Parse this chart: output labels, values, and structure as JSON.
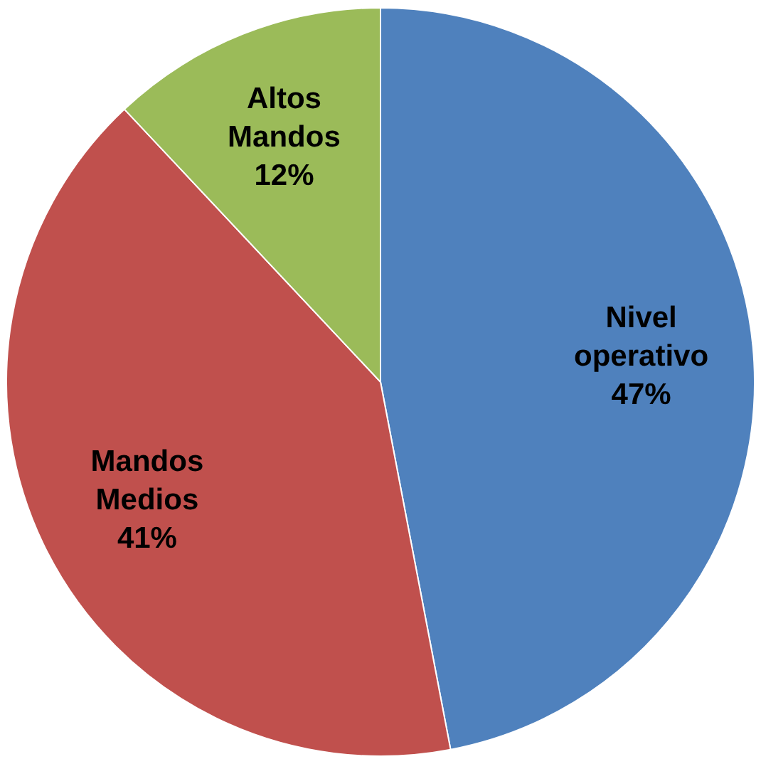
{
  "chart_data": {
    "type": "pie",
    "categories": [
      "Nivel operativo",
      "Mandos Medios",
      "Altos Mandos"
    ],
    "values": [
      47,
      41,
      12
    ],
    "colors": [
      "#4f81bd",
      "#c0504d",
      "#9bbb59"
    ],
    "value_labels": [
      "47%",
      "41%",
      "12%"
    ],
    "legend": false
  }
}
